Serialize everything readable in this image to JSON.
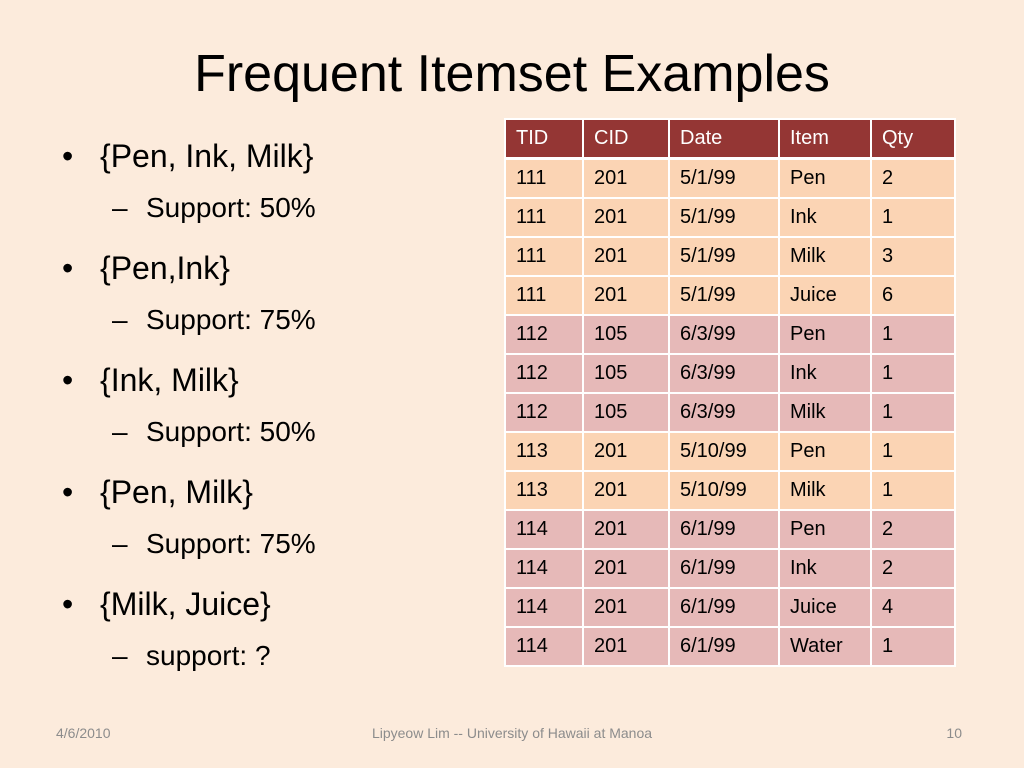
{
  "title": "Frequent Itemset Examples",
  "bullets": [
    {
      "label": "{Pen, Ink, Milk}",
      "sub": "Support: 50%"
    },
    {
      "label": "{Pen,Ink}",
      "sub": "Support: 75%"
    },
    {
      "label": "{Ink, Milk}",
      "sub": "Support: 50%"
    },
    {
      "label": "{Pen, Milk}",
      "sub": "Support: 75%"
    },
    {
      "label": "{Milk, Juice}",
      "sub": "support: ?"
    }
  ],
  "table": {
    "headers": [
      "TID",
      "CID",
      "Date",
      "Item",
      "Qty"
    ],
    "rows": [
      [
        "111",
        "201",
        "5/1/99",
        "Pen",
        "2"
      ],
      [
        "111",
        "201",
        "5/1/99",
        "Ink",
        "1"
      ],
      [
        "111",
        "201",
        "5/1/99",
        "Milk",
        "3"
      ],
      [
        "111",
        "201",
        "5/1/99",
        "Juice",
        "6"
      ],
      [
        "112",
        "105",
        "6/3/99",
        "Pen",
        "1"
      ],
      [
        "112",
        "105",
        "6/3/99",
        "Ink",
        "1"
      ],
      [
        "112",
        "105",
        "6/3/99",
        "Milk",
        "1"
      ],
      [
        "113",
        "201",
        "5/10/99",
        "Pen",
        "1"
      ],
      [
        "113",
        "201",
        "5/10/99",
        "Milk",
        "1"
      ],
      [
        "114",
        "201",
        "6/1/99",
        "Pen",
        "2"
      ],
      [
        "114",
        "201",
        "6/1/99",
        "Ink",
        "2"
      ],
      [
        "114",
        "201",
        "6/1/99",
        "Juice",
        "4"
      ],
      [
        "114",
        "201",
        "6/1/99",
        "Water",
        "1"
      ]
    ]
  },
  "footer": {
    "date": "4/6/2010",
    "center": "Lipyeow Lim -- University of Hawaii at Manoa",
    "page": "10"
  },
  "colors": {
    "background": "#fcebdc",
    "header": "#943634",
    "row_light": "#fbd4b4",
    "row_dark": "#e6b9b8",
    "footer_text": "#8c8c8c"
  }
}
